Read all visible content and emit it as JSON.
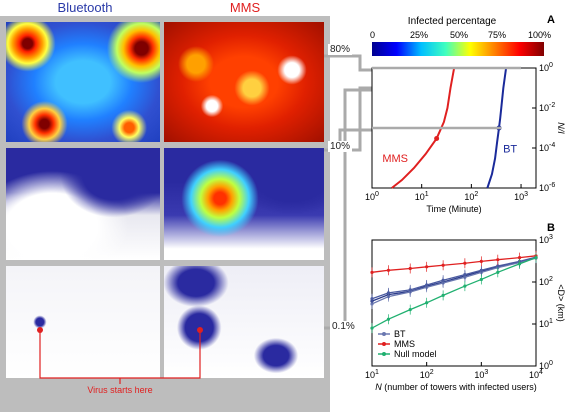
{
  "maps": {
    "col_headers": [
      "Bluetooth",
      "MMS"
    ],
    "col_colors": [
      "#2a3aa8",
      "#e02020"
    ],
    "level_labels": [
      "80%",
      "10%",
      "0.1%"
    ],
    "footer_label": "Virus starts here",
    "footer_color": "#e02020"
  },
  "colorbar": {
    "title": "Infected percentage",
    "ticks": [
      "0",
      "25%",
      "50%",
      "75%",
      "100%"
    ],
    "stops": [
      "#00008f",
      "#0000ff",
      "#00bfff",
      "#40ffbf",
      "#ffff00",
      "#ff7f00",
      "#ff0000",
      "#7f0000"
    ]
  },
  "chart_data": [
    {
      "type": "line",
      "panel": "A",
      "xlabel": "Time (Minute)",
      "ylabel": "N/I",
      "xscale": "log",
      "yscale": "log",
      "xlim": [
        1,
        2000
      ],
      "ylim": [
        1e-06,
        1
      ],
      "xtick_exponents": [
        "0",
        "1",
        "2",
        "3"
      ],
      "ytick_exponents": [
        "-6",
        "-4",
        "-2",
        "0"
      ],
      "series": [
        {
          "name": "MMS",
          "color": "#e02020",
          "x": [
            2.5,
            4,
            7,
            12,
            20,
            28,
            33,
            38,
            45
          ],
          "y": [
            1e-06,
            2.5e-06,
            1e-05,
            5e-05,
            0.0003,
            0.002,
            0.01,
            0.1,
            1
          ]
        },
        {
          "name": "BT",
          "color": "#1a2a9a",
          "x": [
            210,
            260,
            300,
            330,
            360,
            380,
            400,
            440,
            500,
            1000
          ],
          "y": [
            1e-06,
            5e-06,
            3e-05,
            0.0002,
            0.001,
            0.003,
            0.01,
            0.1,
            1,
            1
          ]
        }
      ],
      "level_lines": [
        {
          "label": "80%",
          "y": 1,
          "x": 1000
        },
        {
          "label": "10%",
          "y": 0.001,
          "x": 400
        }
      ]
    },
    {
      "type": "line",
      "panel": "B",
      "xlabel_var": "N",
      "xlabel": "(number of towers with infected users)",
      "ylabel": "<D> (km)",
      "xscale": "log",
      "yscale": "log",
      "xlim": [
        10,
        10000
      ],
      "ylim": [
        1,
        1000
      ],
      "xtick_exponents": [
        "1",
        "2",
        "3",
        "4"
      ],
      "ytick_exponents": [
        "0",
        "1",
        "2",
        "3"
      ],
      "legend_position": "bottom-left",
      "series": [
        {
          "name": "BT",
          "color": "#2a3a8a",
          "x": [
            10,
            20,
            50,
            100,
            200,
            500,
            1000,
            2000,
            5000,
            10000
          ],
          "y": [
            35,
            50,
            60,
            80,
            100,
            140,
            180,
            230,
            300,
            380
          ]
        },
        {
          "name": "BT",
          "color": "#6a78b0",
          "x": [
            10,
            20,
            50,
            100,
            200,
            500,
            1000,
            2000,
            5000,
            10000
          ],
          "y": [
            30,
            45,
            58,
            75,
            95,
            130,
            170,
            220,
            290,
            370
          ]
        },
        {
          "name": "BT",
          "color": "#4a5aa0",
          "x": [
            10,
            20,
            50,
            100,
            200,
            500,
            1000,
            2000,
            5000,
            10000
          ],
          "y": [
            40,
            55,
            65,
            85,
            110,
            150,
            190,
            240,
            310,
            390
          ]
        },
        {
          "name": "MMS",
          "color": "#e02020",
          "x": [
            10,
            20,
            50,
            100,
            200,
            500,
            1000,
            2000,
            5000,
            10000
          ],
          "y": [
            170,
            190,
            210,
            230,
            250,
            280,
            310,
            340,
            380,
            420
          ]
        },
        {
          "name": "Null model",
          "color": "#20b070",
          "x": [
            10,
            20,
            50,
            100,
            200,
            500,
            1000,
            2000,
            5000,
            10000
          ],
          "y": [
            8,
            13,
            22,
            32,
            48,
            80,
            115,
            170,
            270,
            380
          ]
        }
      ],
      "legend": [
        "BT",
        "MMS",
        "Null model"
      ],
      "legend_colors": [
        "#6a78b0",
        "#e02020",
        "#20b070"
      ]
    }
  ]
}
